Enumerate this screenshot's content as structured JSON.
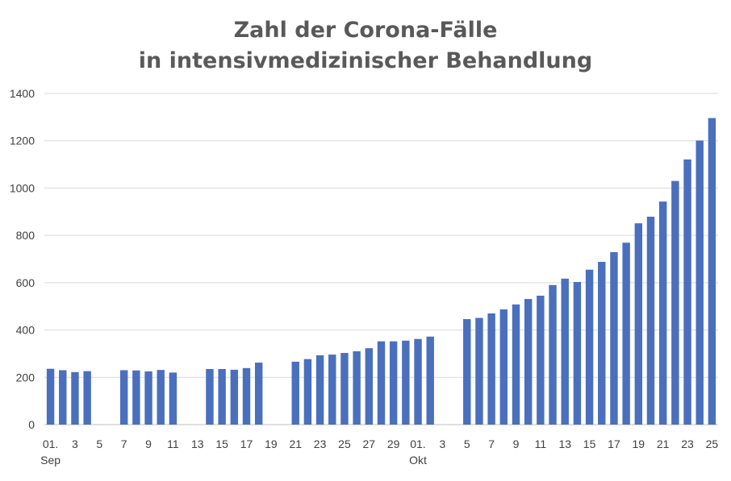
{
  "chart_data": {
    "type": "bar",
    "title_lines": [
      "Zahl der Corona-Fälle",
      "in intensivmedizinischer Behandlung"
    ],
    "xlabel": "",
    "ylabel": "",
    "ylim": [
      0,
      1400
    ],
    "yticks": [
      0,
      200,
      400,
      600,
      800,
      1000,
      1200,
      1400
    ],
    "grid": true,
    "legend": "none",
    "bar_color": "#4a6fbd",
    "x_day_labels": [
      "01.",
      "3",
      "5",
      "7",
      "9",
      "11",
      "13",
      "15",
      "17",
      "19",
      "21",
      "23",
      "25",
      "27",
      "29",
      "01.",
      "3",
      "5",
      "7",
      "9",
      "11",
      "13",
      "15",
      "17",
      "19",
      "21",
      "23",
      "25"
    ],
    "x_month_labels": [
      "Sep",
      "Okt"
    ],
    "categories": [
      "2020-09-01",
      "2020-09-02",
      "2020-09-03",
      "2020-09-04",
      "2020-09-05",
      "2020-09-06",
      "2020-09-07",
      "2020-09-08",
      "2020-09-09",
      "2020-09-10",
      "2020-09-11",
      "2020-09-12",
      "2020-09-13",
      "2020-09-14",
      "2020-09-15",
      "2020-09-16",
      "2020-09-17",
      "2020-09-18",
      "2020-09-19",
      "2020-09-20",
      "2020-09-21",
      "2020-09-22",
      "2020-09-23",
      "2020-09-24",
      "2020-09-25",
      "2020-09-26",
      "2020-09-27",
      "2020-09-28",
      "2020-09-29",
      "2020-09-30",
      "2020-10-01",
      "2020-10-02",
      "2020-10-03",
      "2020-10-04",
      "2020-10-05",
      "2020-10-06",
      "2020-10-07",
      "2020-10-08",
      "2020-10-09",
      "2020-10-10",
      "2020-10-11",
      "2020-10-12",
      "2020-10-13",
      "2020-10-14",
      "2020-10-15",
      "2020-10-16",
      "2020-10-17",
      "2020-10-18",
      "2020-10-19",
      "2020-10-20",
      "2020-10-21",
      "2020-10-22",
      "2020-10-23",
      "2020-10-24",
      "2020-10-25"
    ],
    "values": [
      236,
      230,
      222,
      226,
      null,
      null,
      230,
      229,
      225,
      231,
      220,
      null,
      null,
      235,
      235,
      232,
      239,
      262,
      null,
      null,
      266,
      277,
      293,
      296,
      303,
      310,
      323,
      352,
      352,
      355,
      362,
      372,
      null,
      null,
      446,
      451,
      470,
      487,
      508,
      531,
      545,
      590,
      617,
      603,
      655,
      688,
      729,
      769,
      851,
      879,
      943,
      1030,
      1121,
      1201,
      1296
    ]
  }
}
